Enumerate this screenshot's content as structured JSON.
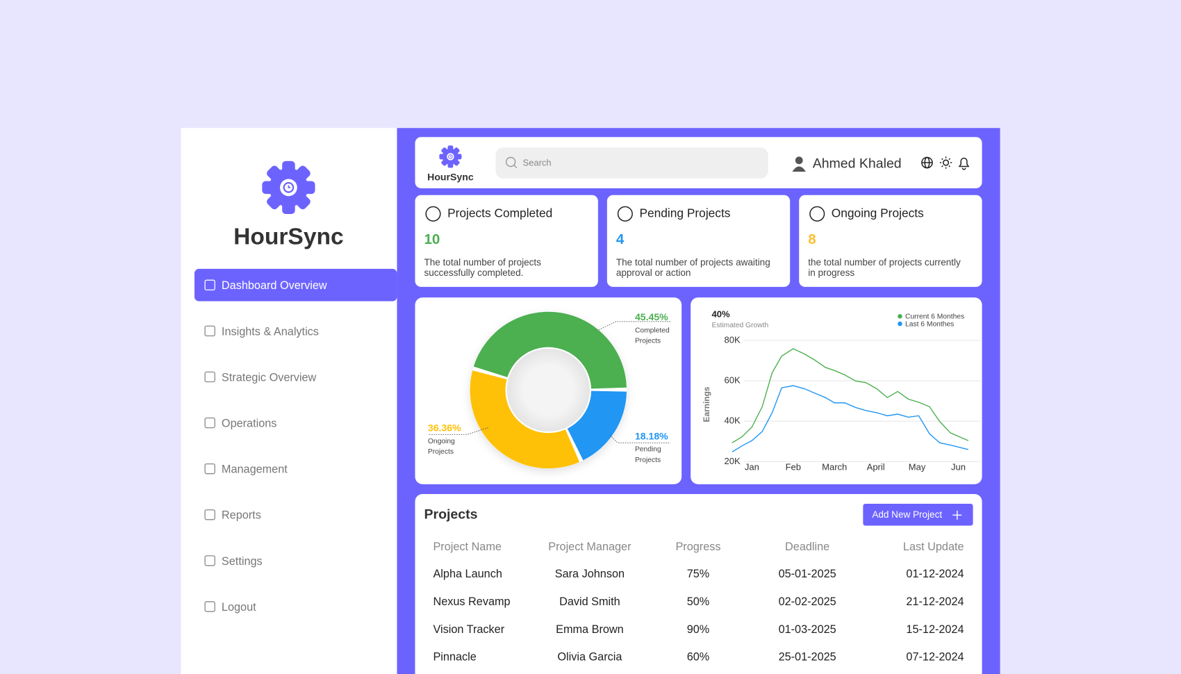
{
  "sidebar": {
    "brand": "HourSync",
    "nav": [
      "Dashboard Overview",
      "Insights & Analytics",
      "Strategic Overview",
      "Operations",
      "Management",
      "Reports",
      "Settings",
      "Logout"
    ]
  },
  "header": {
    "brand": "HourSync",
    "search_placeholder": "Search",
    "user": "Ahmed Khaled"
  },
  "stats": [
    {
      "title": "Projects Completed",
      "value": 10,
      "description": [
        "The total number of projects",
        "successfully completed."
      ],
      "color": "#4caf50"
    },
    {
      "title": "Pending Projects",
      "value": 4,
      "description": [
        "The total number of projects awaiting",
        "approval or action"
      ],
      "color": "#2196f3"
    },
    {
      "title": "Ongoing Projects",
      "value": 8,
      "description": [
        "the total number of projects currently",
        "in progress"
      ],
      "color": "#fbc02d"
    }
  ],
  "donut_chart": {
    "type": "donut",
    "labels": [
      [
        "Completed",
        "Projects"
      ],
      [
        "Pending",
        "Projects"
      ],
      [
        "Ongoing",
        "Projects"
      ]
    ],
    "values": [
      45.45,
      18.18,
      36.36
    ],
    "value_labels": [
      "45.45%",
      "18.18%",
      "36.36%"
    ],
    "colors": [
      "#4caf50",
      "#2196f3",
      "#ffc107"
    ]
  },
  "line_chart": {
    "type": "line",
    "title": "40%",
    "subtitle": "Estimated Growth",
    "y_label": "Earnings",
    "x": [
      -0.48,
      -0.24,
      0.0,
      0.25,
      0.49,
      0.72,
      1.0,
      1.27,
      1.52,
      1.78,
      2.0,
      2.25,
      2.51,
      2.76,
      3.02,
      3.28,
      3.53,
      3.79,
      4.04,
      4.3,
      4.55,
      4.81,
      5.24
    ],
    "xlim": [
      -0.7,
      5.5
    ],
    "xticks": [
      {
        "value": 0,
        "label": "Jan"
      },
      {
        "value": 1,
        "label": "Feb"
      },
      {
        "value": 2,
        "label": "March"
      },
      {
        "value": 3,
        "label": "April"
      },
      {
        "value": 4,
        "label": "May"
      },
      {
        "value": 5,
        "label": "Jun"
      }
    ],
    "ylim": [
      20000,
      80000
    ],
    "yticks": [
      {
        "value": 20000,
        "label": "20K"
      },
      {
        "value": 40000,
        "label": "40K"
      },
      {
        "value": 60000,
        "label": "60K"
      },
      {
        "value": 80000,
        "label": "80K"
      }
    ],
    "grid": true,
    "series": [
      {
        "name": "Current 6 Monthes",
        "color": "#4caf50",
        "values": [
          29300,
          32300,
          37100,
          47200,
          64000,
          72200,
          75900,
          73300,
          70300,
          66600,
          65100,
          62900,
          59900,
          59100,
          56100,
          51700,
          54700,
          50900,
          49400,
          47200,
          39800,
          34200,
          30400
        ]
      },
      {
        "name": "Last 6 Monthes",
        "color": "#2196f3",
        "values": [
          24800,
          27800,
          30400,
          34900,
          44200,
          56500,
          57600,
          56100,
          53900,
          51700,
          49100,
          49100,
          46800,
          45300,
          44200,
          42700,
          43500,
          42000,
          42700,
          33800,
          29300,
          28200,
          26000
        ]
      }
    ]
  },
  "projects": {
    "title": "Projects",
    "button": "Add New Project",
    "columns": [
      "Project Name",
      "Project Manager",
      "Progress",
      "Deadline",
      "Last Update"
    ],
    "rows": [
      [
        "Alpha Launch",
        "Sara Johnson",
        "75%",
        "05-01-2025",
        "01-12-2024"
      ],
      [
        "Nexus Revamp",
        "David Smith",
        "50%",
        "02-02-2025",
        "21-12-2024"
      ],
      [
        "Vision Tracker",
        "Emma Brown",
        "90%",
        "01-03-2025",
        "15-12-2024"
      ],
      [
        "Pinnacle",
        "Olivia Garcia",
        "60%",
        "25-01-2025",
        "07-12-2024"
      ]
    ]
  }
}
